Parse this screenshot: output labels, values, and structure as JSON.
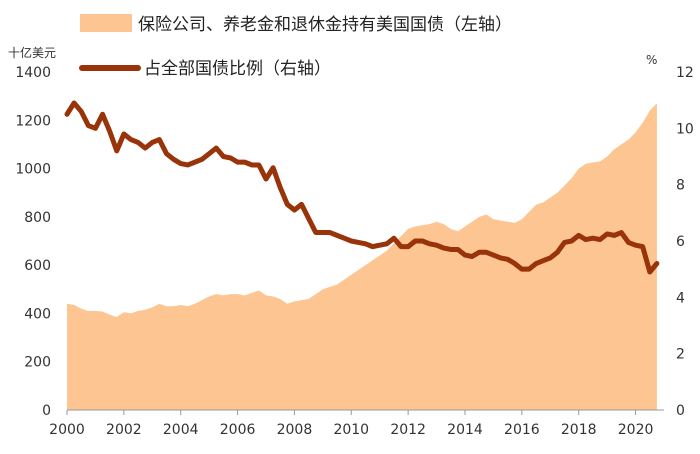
{
  "chart_data": {
    "type": "area+line",
    "title": "",
    "left_axis_unit": "十亿美元",
    "right_axis_unit": "%",
    "left_ylim": [
      0,
      1400
    ],
    "right_ylim": [
      0,
      12
    ],
    "left_ticks": [
      0,
      200,
      400,
      600,
      800,
      1000,
      1200,
      1400
    ],
    "right_ticks": [
      0,
      2,
      4,
      6,
      8,
      10,
      12
    ],
    "x_ticks": [
      2000,
      2002,
      2004,
      2006,
      2008,
      2010,
      2012,
      2014,
      2016,
      2018,
      2020
    ],
    "xlim": [
      2000,
      2021
    ],
    "legend_position": "top",
    "grid": false,
    "colors": {
      "area": "#FCC591",
      "line": "#993309"
    },
    "series": [
      {
        "name": "保险公司、养老金和退休金持有美国国债（左轴）",
        "axis": "left",
        "kind": "area",
        "x": [
          2000.0,
          2000.25,
          2000.5,
          2000.75,
          2001.0,
          2001.25,
          2001.5,
          2001.75,
          2002.0,
          2002.25,
          2002.5,
          2002.75,
          2003.0,
          2003.25,
          2003.5,
          2003.75,
          2004.0,
          2004.25,
          2004.5,
          2004.75,
          2005.0,
          2005.25,
          2005.5,
          2005.75,
          2006.0,
          2006.25,
          2006.5,
          2006.75,
          2007.0,
          2007.25,
          2007.5,
          2007.75,
          2008.0,
          2008.25,
          2008.5,
          2008.75,
          2009.0,
          2009.25,
          2009.5,
          2009.75,
          2010.0,
          2010.25,
          2010.5,
          2010.75,
          2011.0,
          2011.25,
          2011.5,
          2011.75,
          2012.0,
          2012.25,
          2012.5,
          2012.75,
          2013.0,
          2013.25,
          2013.5,
          2013.75,
          2014.0,
          2014.25,
          2014.5,
          2014.75,
          2015.0,
          2015.25,
          2015.5,
          2015.75,
          2016.0,
          2016.25,
          2016.5,
          2016.75,
          2017.0,
          2017.25,
          2017.5,
          2017.75,
          2018.0,
          2018.25,
          2018.5,
          2018.75,
          2019.0,
          2019.25,
          2019.5,
          2019.75,
          2020.0,
          2020.25,
          2020.5,
          2020.75
        ],
        "values": [
          440,
          435,
          420,
          410,
          410,
          408,
          395,
          385,
          405,
          400,
          410,
          415,
          425,
          440,
          430,
          430,
          435,
          430,
          440,
          455,
          470,
          480,
          475,
          480,
          480,
          475,
          485,
          495,
          475,
          470,
          460,
          440,
          450,
          455,
          460,
          480,
          500,
          510,
          520,
          540,
          560,
          580,
          600,
          620,
          640,
          660,
          690,
          720,
          750,
          760,
          765,
          770,
          780,
          770,
          750,
          740,
          760,
          780,
          800,
          810,
          790,
          785,
          780,
          775,
          790,
          820,
          850,
          860,
          880,
          900,
          930,
          960,
          1000,
          1020,
          1025,
          1030,
          1050,
          1080,
          1100,
          1120,
          1150,
          1190,
          1240,
          1270
        ]
      },
      {
        "name": "占全部国债比例（右轴）",
        "axis": "right",
        "kind": "line",
        "x": [
          2000.0,
          2000.25,
          2000.5,
          2000.75,
          2001.0,
          2001.25,
          2001.5,
          2001.75,
          2002.0,
          2002.25,
          2002.5,
          2002.75,
          2003.0,
          2003.25,
          2003.5,
          2003.75,
          2004.0,
          2004.25,
          2004.5,
          2004.75,
          2005.0,
          2005.25,
          2005.5,
          2005.75,
          2006.0,
          2006.25,
          2006.5,
          2006.75,
          2007.0,
          2007.25,
          2007.5,
          2007.75,
          2008.0,
          2008.25,
          2008.5,
          2008.75,
          2009.0,
          2009.25,
          2009.5,
          2009.75,
          2010.0,
          2010.25,
          2010.5,
          2010.75,
          2011.0,
          2011.25,
          2011.5,
          2011.75,
          2012.0,
          2012.25,
          2012.5,
          2012.75,
          2013.0,
          2013.25,
          2013.5,
          2013.75,
          2014.0,
          2014.25,
          2014.5,
          2014.75,
          2015.0,
          2015.25,
          2015.5,
          2015.75,
          2016.0,
          2016.25,
          2016.5,
          2016.75,
          2017.0,
          2017.25,
          2017.5,
          2017.75,
          2018.0,
          2018.25,
          2018.5,
          2018.75,
          2019.0,
          2019.25,
          2019.5,
          2019.75,
          2020.0,
          2020.25,
          2020.5,
          2020.75
        ],
        "values": [
          10.5,
          10.9,
          10.6,
          10.1,
          10.0,
          10.5,
          9.9,
          9.2,
          9.8,
          9.6,
          9.5,
          9.3,
          9.5,
          9.6,
          9.1,
          8.9,
          8.75,
          8.7,
          8.8,
          8.9,
          9.1,
          9.3,
          9.0,
          8.95,
          8.8,
          8.8,
          8.7,
          8.7,
          8.2,
          8.6,
          7.9,
          7.3,
          7.1,
          7.3,
          6.8,
          6.3,
          6.3,
          6.3,
          6.2,
          6.1,
          6.0,
          5.95,
          5.9,
          5.8,
          5.85,
          5.9,
          6.1,
          5.8,
          5.8,
          6.0,
          6.0,
          5.9,
          5.85,
          5.75,
          5.7,
          5.7,
          5.5,
          5.45,
          5.6,
          5.6,
          5.5,
          5.4,
          5.35,
          5.2,
          5.0,
          5.0,
          5.2,
          5.3,
          5.4,
          5.6,
          5.95,
          6.0,
          6.2,
          6.05,
          6.1,
          6.05,
          6.25,
          6.2,
          6.3,
          5.95,
          5.85,
          5.8,
          4.9,
          5.2
        ]
      }
    ]
  }
}
